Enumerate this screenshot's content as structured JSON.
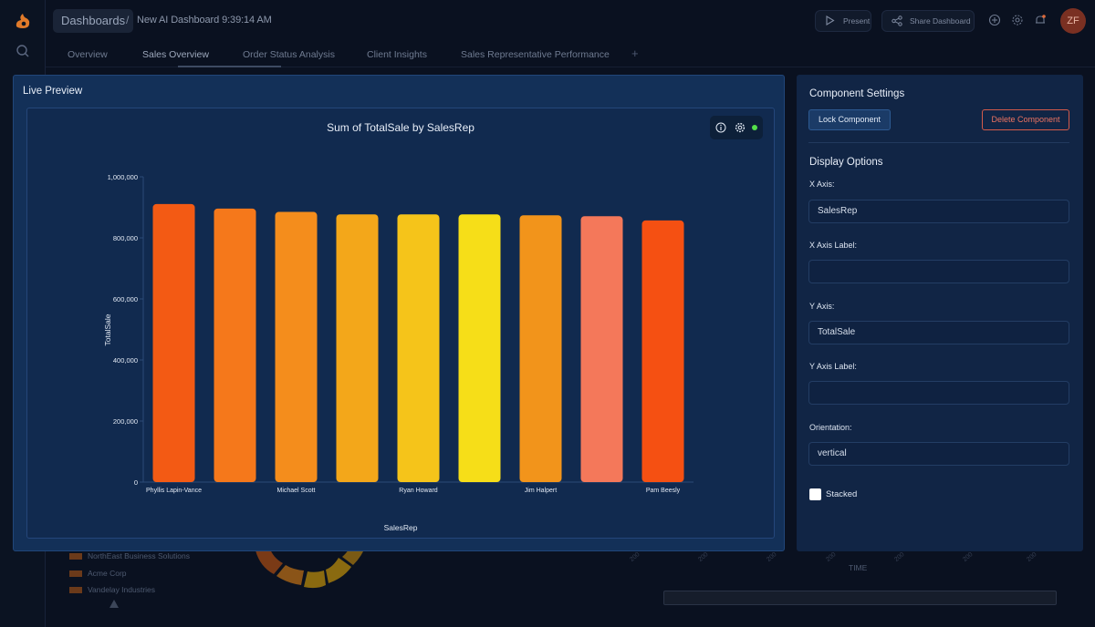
{
  "header": {
    "home_crumb": "Dashboards",
    "separator": "/",
    "dashboard_title": "New AI Dashboard 9:39:14 AM",
    "present_label": "Present",
    "share_label": "Share Dashboard",
    "avatar_initials": "ZF"
  },
  "tabs": [
    {
      "label": "Overview"
    },
    {
      "label": "Sales Overview"
    },
    {
      "label": "Order Status Analysis"
    },
    {
      "label": "Client Insights"
    },
    {
      "label": "Sales Representative Performance"
    }
  ],
  "tab_add": "+",
  "background": {
    "legend": [
      "NorthEast Business Solutions",
      "Acme Corp",
      "Vandelay Industries"
    ],
    "time_label": "TIME"
  },
  "preview": {
    "title": "Live Preview"
  },
  "chart_data": {
    "type": "bar",
    "title": "Sum of TotalSale by SalesRep",
    "xlabel": "SalesRep",
    "ylabel": "TotalSale",
    "ylim": [
      0,
      1000000
    ],
    "yticks": [
      0,
      200000,
      400000,
      600000,
      800000,
      1000000
    ],
    "ytick_labels": [
      "0",
      "200,000",
      "400,000",
      "600,000",
      "800,000",
      "1,000,000"
    ],
    "categories": [
      "Phyllis Lapin-Vance",
      "",
      "Michael Scott",
      "",
      "Ryan Howard",
      "",
      "Jim Halpert",
      "",
      "Pam Beesly"
    ],
    "values": [
      911000,
      896000,
      885000,
      877000,
      877000,
      877000,
      874000,
      871000,
      857000
    ],
    "bar_colors": [
      "#f35a14",
      "#f5781b",
      "#f48d1c",
      "#f3a71a",
      "#f5c41a",
      "#f6de18",
      "#f2941b",
      "#f4785a",
      "#f55012"
    ],
    "grid": false
  },
  "settings": {
    "title": "Component Settings",
    "lock_label": "Lock Component",
    "delete_label": "Delete Component",
    "display_title": "Display Options",
    "x_axis_label": "X Axis:",
    "x_axis_value": "SalesRep",
    "x_axis_label_label": "X Axis Label:",
    "x_axis_label_value": "",
    "y_axis_label": "Y Axis:",
    "y_axis_value": "TotalSale",
    "y_axis_label_label": "Y Axis Label:",
    "y_axis_label_value": "",
    "orientation_label": "Orientation:",
    "orientation_value": "vertical",
    "stacked_label": "Stacked"
  }
}
